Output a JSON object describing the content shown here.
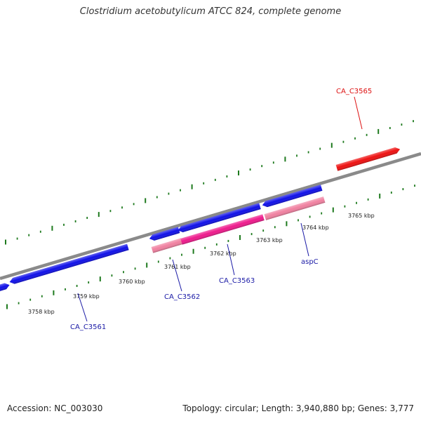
{
  "title": "Clostridium acetobutylicum ATCC 824, complete genome",
  "footer": {
    "accession": "Accession: NC_003030",
    "summary": "Topology: circular; Length: 3,940,880 bp; Genes: 3,777"
  },
  "colors": {
    "background": "#ffffff",
    "backbone": "#8a8a8a",
    "tick": "#1e7a1e",
    "gene_blue": "#1010e8",
    "gene_red": "#ee1111",
    "gene_pink": "#f080a0",
    "gene_magenta": "#ee1a8c",
    "label_blue": "#1a1aa6",
    "label_red": "#dd1111"
  },
  "scale_labels": [
    "3758 kbp",
    "3759 kbp",
    "3760 kbp",
    "3761 kbp",
    "3762 kbp",
    "3763 kbp",
    "3764 kbp",
    "3765 kbp"
  ],
  "gene_labels": [
    {
      "id": "CA_C3561",
      "color": "blue"
    },
    {
      "id": "CA_C3562",
      "color": "blue"
    },
    {
      "id": "CA_C3563",
      "color": "blue"
    },
    {
      "id": "aspC",
      "color": "blue"
    },
    {
      "id": "CA_C3565",
      "color": "red"
    }
  ]
}
